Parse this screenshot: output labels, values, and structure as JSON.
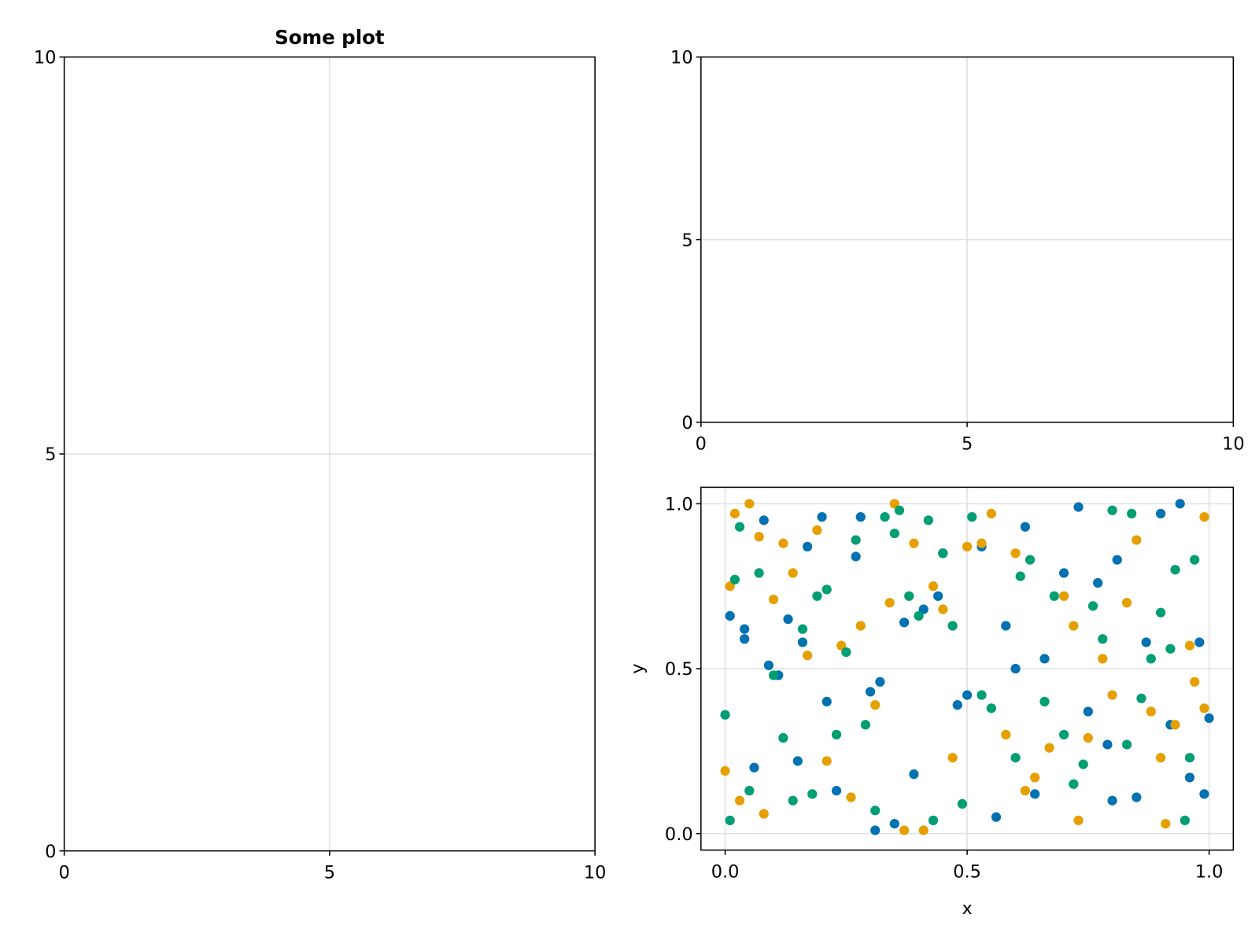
{
  "chart_data": [
    {
      "type": "scatter",
      "title": "Some plot",
      "xlim": [
        0,
        10
      ],
      "ylim": [
        0,
        10
      ],
      "xticks": [
        0,
        5,
        10
      ],
      "yticks": [
        0,
        5,
        10
      ],
      "grid": true,
      "series": []
    },
    {
      "type": "scatter",
      "xlim": [
        0,
        10
      ],
      "ylim": [
        0,
        10
      ],
      "xticks": [
        0,
        5,
        10
      ],
      "yticks": [
        0,
        5,
        10
      ],
      "grid": true,
      "series": []
    },
    {
      "type": "scatter",
      "x_label": "x",
      "y_label": "y",
      "xlim": [
        -0.05,
        1.05
      ],
      "ylim": [
        -0.05,
        1.05
      ],
      "xticks": [
        {
          "value": 0,
          "label": "0.0"
        },
        {
          "value": 0.5,
          "label": "0.5"
        },
        {
          "value": 1,
          "label": "1.0"
        }
      ],
      "yticks": [
        {
          "value": 0,
          "label": "0.0"
        },
        {
          "value": 0.5,
          "label": "0.5"
        },
        {
          "value": 1,
          "label": "1.0"
        }
      ],
      "grid": true,
      "series": [
        {
          "color": "#0072b2",
          "x": [
            0.01,
            0.04,
            0.04,
            0.06,
            0.08,
            0.09,
            0.11,
            0.13,
            0.15,
            0.16,
            0.17,
            0.2,
            0.21,
            0.23,
            0.27,
            0.28,
            0.3,
            0.31,
            0.32,
            0.35,
            0.37,
            0.39,
            0.41,
            0.44,
            0.45,
            0.48,
            0.5,
            0.53,
            0.56,
            0.58,
            0.6,
            0.62,
            0.64,
            0.66,
            0.7,
            0.73,
            0.75,
            0.77,
            0.79,
            0.8,
            0.81,
            0.85,
            0.87,
            0.9,
            0.92,
            0.94,
            0.96,
            0.98,
            0.99,
            1.0
          ],
          "values": [
            0.66,
            0.62,
            0.59,
            0.2,
            0.95,
            0.51,
            0.48,
            0.65,
            0.22,
            0.58,
            0.87,
            0.96,
            0.4,
            0.13,
            0.84,
            0.96,
            0.43,
            0.01,
            0.46,
            0.03,
            0.64,
            0.18,
            0.68,
            0.72,
            0.85,
            0.39,
            0.42,
            0.87,
            0.05,
            0.63,
            0.5,
            0.93,
            0.12,
            0.53,
            0.79,
            0.99,
            0.37,
            0.76,
            0.27,
            0.1,
            0.83,
            0.11,
            0.58,
            0.97,
            0.33,
            1.0,
            0.17,
            0.58,
            0.12,
            0.35
          ]
        },
        {
          "color": "#e69f00",
          "x": [
            0.0,
            0.01,
            0.02,
            0.03,
            0.05,
            0.07,
            0.08,
            0.1,
            0.12,
            0.14,
            0.17,
            0.19,
            0.21,
            0.24,
            0.26,
            0.28,
            0.31,
            0.34,
            0.35,
            0.37,
            0.39,
            0.41,
            0.43,
            0.45,
            0.47,
            0.5,
            0.53,
            0.55,
            0.58,
            0.6,
            0.62,
            0.64,
            0.67,
            0.7,
            0.72,
            0.73,
            0.75,
            0.78,
            0.8,
            0.83,
            0.85,
            0.88,
            0.9,
            0.91,
            0.93,
            0.96,
            0.97,
            0.99,
            0.99
          ],
          "values": [
            0.19,
            0.75,
            0.97,
            0.1,
            1.0,
            0.9,
            0.06,
            0.71,
            0.88,
            0.79,
            0.54,
            0.92,
            0.22,
            0.57,
            0.11,
            0.63,
            0.39,
            0.7,
            1.0,
            0.01,
            0.88,
            0.01,
            0.75,
            0.68,
            0.23,
            0.87,
            0.88,
            0.97,
            0.3,
            0.85,
            0.13,
            0.17,
            0.26,
            0.72,
            0.63,
            0.04,
            0.29,
            0.53,
            0.42,
            0.7,
            0.89,
            0.37,
            0.23,
            0.03,
            0.33,
            0.57,
            0.46,
            0.96,
            0.38
          ]
        },
        {
          "color": "#009e73",
          "x": [
            0.0,
            0.01,
            0.02,
            0.03,
            0.05,
            0.07,
            0.1,
            0.12,
            0.14,
            0.16,
            0.18,
            0.19,
            0.21,
            0.23,
            0.25,
            0.27,
            0.29,
            0.31,
            0.33,
            0.35,
            0.36,
            0.38,
            0.4,
            0.42,
            0.43,
            0.45,
            0.47,
            0.49,
            0.51,
            0.53,
            0.55,
            0.6,
            0.61,
            0.63,
            0.66,
            0.68,
            0.7,
            0.72,
            0.74,
            0.76,
            0.78,
            0.8,
            0.83,
            0.84,
            0.86,
            0.88,
            0.9,
            0.92,
            0.93,
            0.95,
            0.96,
            0.97
          ],
          "values": [
            0.36,
            0.04,
            0.77,
            0.93,
            0.13,
            0.79,
            0.48,
            0.29,
            0.1,
            0.62,
            0.12,
            0.72,
            0.74,
            0.3,
            0.55,
            0.89,
            0.33,
            0.07,
            0.96,
            0.91,
            0.98,
            0.72,
            0.66,
            0.95,
            0.04,
            0.85,
            0.63,
            0.09,
            0.96,
            0.42,
            0.38,
            0.23,
            0.78,
            0.83,
            0.4,
            0.72,
            0.3,
            0.15,
            0.21,
            0.69,
            0.59,
            0.98,
            0.27,
            0.97,
            0.41,
            0.53,
            0.67,
            0.56,
            0.8,
            0.04,
            0.23,
            0.83
          ]
        }
      ]
    }
  ]
}
